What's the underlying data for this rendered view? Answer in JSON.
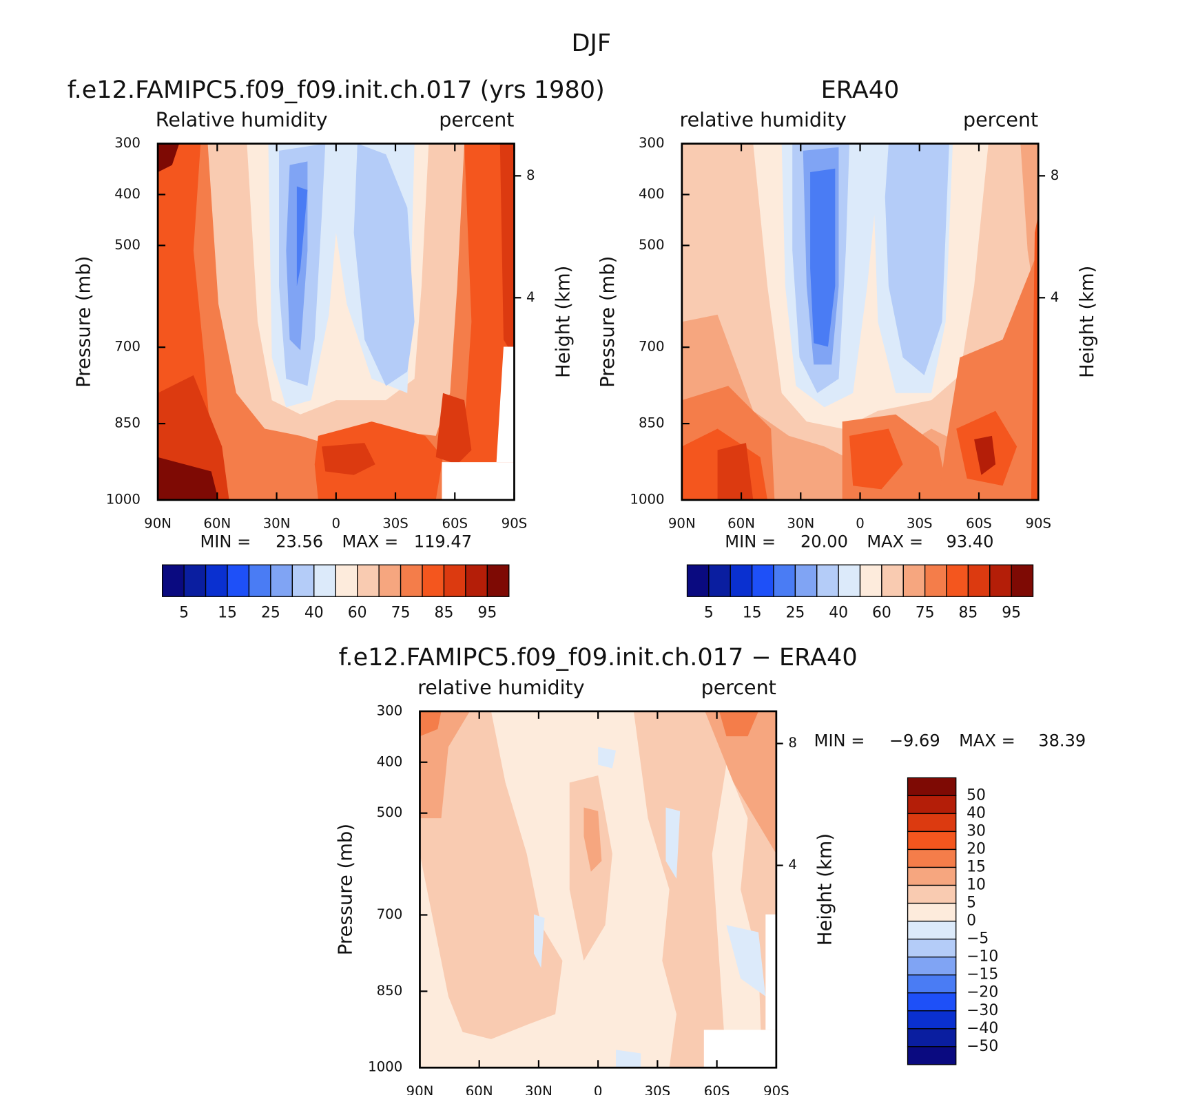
{
  "title": "DJF",
  "chart_data": [
    {
      "type": "contour",
      "title": "f.e12.FAMIPC5.f09_f09.init.ch.017 (yrs 1980)",
      "subtitle_left": "Relative humidity",
      "subtitle_right": "percent",
      "ylabel": "Pressure (mb)",
      "y2label": "Height (km)",
      "xlim": [
        90,
        -90
      ],
      "xticks": [
        {
          "value": 90,
          "label": "90N"
        },
        {
          "value": 60,
          "label": "60N"
        },
        {
          "value": 30,
          "label": "30N"
        },
        0,
        {
          "value": -30,
          "label": "30S"
        },
        {
          "value": -60,
          "label": "60S"
        },
        {
          "value": -90,
          "label": "90S"
        }
      ],
      "ylim": [
        1000,
        300
      ],
      "yticks": [
        300,
        400,
        500,
        700,
        850,
        1000
      ],
      "y2ticks": [
        4,
        8
      ],
      "min_label": "MIN =",
      "min": 23.56,
      "max_label": "MAX =",
      "max": 119.47,
      "colorbar": {
        "orientation": "horizontal",
        "colors": [
          "#0a0a80",
          "#0a1ea0",
          "#0a30d0",
          "#1e50f8",
          "#4a7cf4",
          "#80a4f4",
          "#b4ccf8",
          "#dceafa",
          "#fdebdc",
          "#f9cbb1",
          "#f6a67f",
          "#f47d4a",
          "#f4561e",
          "#dc3a10",
          "#b41e08",
          "#7e0a04"
        ],
        "labels": [
          5,
          15,
          25,
          40,
          60,
          75,
          85,
          95
        ]
      }
    },
    {
      "type": "contour",
      "title": "ERA40",
      "subtitle_left": "relative humidity",
      "subtitle_right": "percent",
      "ylabel": "Pressure (mb)",
      "y2label": "Height (km)",
      "xlim": [
        90,
        -90
      ],
      "xticks": [
        {
          "value": 90,
          "label": "90N"
        },
        {
          "value": 60,
          "label": "60N"
        },
        {
          "value": 30,
          "label": "30N"
        },
        0,
        {
          "value": -30,
          "label": "30S"
        },
        {
          "value": -60,
          "label": "60S"
        },
        {
          "value": -90,
          "label": "90S"
        }
      ],
      "ylim": [
        1000,
        300
      ],
      "yticks": [
        300,
        400,
        500,
        700,
        850,
        1000
      ],
      "y2ticks": [
        4,
        8
      ],
      "min_label": "MIN =",
      "min": {
        "value": 20,
        "label": "20.00"
      },
      "max_label": "MAX =",
      "max": {
        "value": 93.4,
        "label": "93.40"
      },
      "colorbar": {
        "orientation": "horizontal",
        "colors": [
          "#0a0a80",
          "#0a1ea0",
          "#0a30d0",
          "#1e50f8",
          "#4a7cf4",
          "#80a4f4",
          "#b4ccf8",
          "#dceafa",
          "#fdebdc",
          "#f9cbb1",
          "#f6a67f",
          "#f47d4a",
          "#f4561e",
          "#dc3a10",
          "#b41e08",
          "#7e0a04"
        ],
        "labels": [
          5,
          15,
          25,
          40,
          60,
          75,
          85,
          95
        ]
      }
    },
    {
      "type": "contour",
      "title": "f.e12.FAMIPC5.f09_f09.init.ch.017 − ERA40",
      "subtitle_left": "relative humidity",
      "subtitle_right": "percent",
      "ylabel": "Pressure (mb)",
      "y2label": "Height (km)",
      "xlim": [
        90,
        -90
      ],
      "xticks": [
        {
          "value": 90,
          "label": "90N"
        },
        {
          "value": 60,
          "label": "60N"
        },
        {
          "value": 30,
          "label": "30N"
        },
        0,
        {
          "value": -30,
          "label": "30S"
        },
        {
          "value": -60,
          "label": "60S"
        },
        {
          "value": -90,
          "label": "90S"
        }
      ],
      "ylim": [
        1000,
        300
      ],
      "yticks": [
        300,
        400,
        500,
        700,
        850,
        1000
      ],
      "y2ticks": [
        4,
        8
      ],
      "min_label": "MIN =",
      "min": {
        "value": -9.69,
        "label": "−9.69"
      },
      "max_label": "MAX =",
      "max": 38.39,
      "colorbar": {
        "orientation": "vertical",
        "colors": [
          "#7e0a04",
          "#b41e08",
          "#dc3a10",
          "#f4561e",
          "#f47d4a",
          "#f6a67f",
          "#f9cbb1",
          "#fdebdc",
          "#dceafa",
          "#b4ccf8",
          "#80a4f4",
          "#4a7cf4",
          "#1e50f8",
          "#0a30d0",
          "#0a1ea0",
          "#0a0a80"
        ],
        "labels": [
          50,
          40,
          30,
          20,
          15,
          10,
          5,
          0,
          {
            "value": -5,
            "label": "−5"
          },
          {
            "value": -10,
            "label": "−10"
          },
          {
            "value": -15,
            "label": "−15"
          },
          {
            "value": -20,
            "label": "−20"
          },
          {
            "value": -30,
            "label": "−30"
          },
          {
            "value": -40,
            "label": "−40"
          },
          {
            "value": -50,
            "label": "−50"
          }
        ]
      }
    }
  ]
}
